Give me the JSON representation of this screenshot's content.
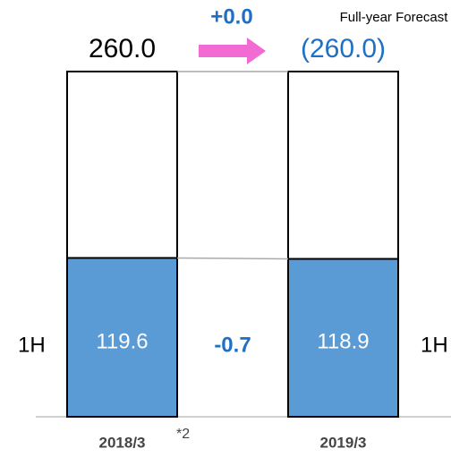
{
  "chart_data": {
    "type": "bar",
    "annotation": "Full-year Forecast",
    "categories": [
      "2018/3",
      "2019/3"
    ],
    "category_note": "*2",
    "totals": {
      "values": [
        260.0,
        260.0
      ],
      "value_labels": [
        "260.0",
        "(260.0)"
      ]
    },
    "series": [
      {
        "name": "1H",
        "color": "#5b9bd5",
        "values": [
          119.6,
          118.9
        ]
      }
    ],
    "changes": {
      "values": [
        0.0,
        -0.7
      ],
      "value_labels": [
        "+0.0",
        "-0.7"
      ]
    }
  }
}
